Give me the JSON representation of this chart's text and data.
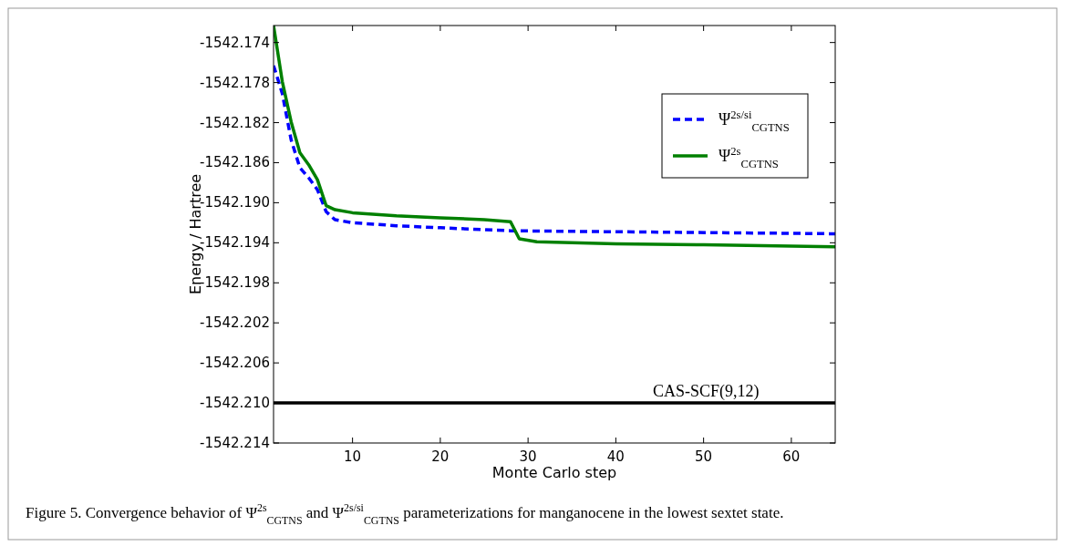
{
  "chart_data": {
    "type": "line",
    "xlabel": "Monte Carlo step",
    "ylabel": "Energy / Hartree",
    "xlim": [
      1,
      65
    ],
    "xticks": [
      10,
      20,
      30,
      40,
      50,
      60
    ],
    "ylim": [
      -1542.214,
      -1542.1723
    ],
    "yticks": [
      -1542.174,
      -1542.178,
      -1542.182,
      -1542.186,
      {
        "value": -1542.19,
        "label": "-1542.190"
      },
      -1542.194,
      -1542.198,
      -1542.202,
      -1542.206,
      {
        "value": -1542.21,
        "label": "-1542.210"
      },
      -1542.214
    ],
    "grid": false,
    "legend": "top right",
    "series": [
      {
        "name": "Ψ$^{2s/si}$$_{CGTNS}$",
        "color": "#0000ff",
        "line_style": "dashed",
        "x": [
          1,
          2,
          3,
          4,
          5,
          6,
          7,
          8,
          10,
          15,
          20,
          28,
          40,
          65
        ],
        "values": [
          -1542.1763,
          -1542.1791,
          -1542.1837,
          -1542.1865,
          -1542.1875,
          -1542.1887,
          -1542.1909,
          -1542.1917,
          -1542.192,
          -1542.1923,
          -1542.1925,
          -1542.1928,
          -1542.1929,
          -1542.1931
        ]
      },
      {
        "name": "Ψ$^{2s}$$_{CGTNS}$",
        "color": "#008000",
        "line_style": "solid",
        "x": [
          1,
          2,
          3,
          4,
          5,
          6,
          7,
          8,
          10,
          15,
          20,
          25,
          28,
          29,
          31,
          40,
          50,
          65
        ],
        "values": [
          -1542.1723,
          -1542.1779,
          -1542.1819,
          -1542.185,
          -1542.1862,
          -1542.1877,
          -1542.1903,
          -1542.1907,
          -1542.191,
          -1542.1913,
          -1542.1915,
          -1542.1917,
          -1542.1919,
          -1542.1936,
          -1542.1939,
          -1542.1941,
          -1542.1942,
          -1542.1944
        ]
      }
    ],
    "ref_lines": [
      {
        "axis": "y",
        "value": -1542.21,
        "label": "CAS-SCF(9,12)",
        "color": "#000000"
      }
    ],
    "annotations": [
      "Figure 5. Convergence behavior of Ψ$^{2s}$$_{CGTNS}$ and Ψ$^{2s/si}$$_{CGTNS}$ parameterizations for manganocene in the lowest sextet state."
    ]
  }
}
